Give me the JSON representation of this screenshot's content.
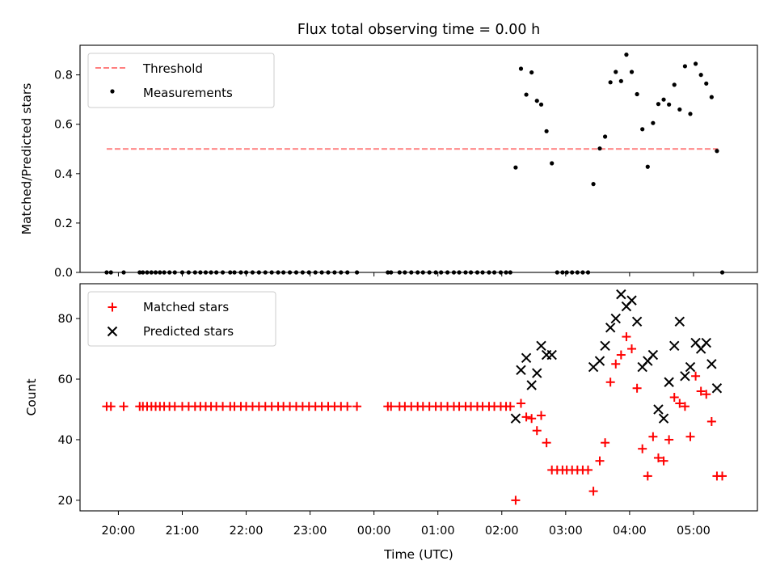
{
  "chart_data": [
    {
      "type": "scatter",
      "title": "Flux total observing time = 0.00 h",
      "xlabel": "",
      "ylabel": "Matched/Predicted stars",
      "ylim": [
        0.0,
        0.92
      ],
      "yticks": [
        0.0,
        0.2,
        0.4,
        0.6,
        0.8
      ],
      "ytick_labels": [
        "0.0",
        "0.2",
        "0.4",
        "0.6",
        "0.8"
      ],
      "legend_position": "top-left",
      "threshold": {
        "name": "Threshold",
        "value": 0.5,
        "x_start": "19:49",
        "x_end": "05:23",
        "color": "#ff7f7f"
      },
      "series": [
        {
          "name": "Measurements",
          "color": "#000000",
          "points": [
            [
              "19:49",
              0
            ],
            [
              "19:53",
              0
            ],
            [
              "20:05",
              0
            ],
            [
              "20:20",
              0
            ],
            [
              "20:23",
              0
            ],
            [
              "20:27",
              0
            ],
            [
              "20:31",
              0
            ],
            [
              "20:35",
              0
            ],
            [
              "20:39",
              0
            ],
            [
              "20:43",
              0
            ],
            [
              "20:48",
              0
            ],
            [
              "20:53",
              0
            ],
            [
              "21:00",
              0
            ],
            [
              "21:06",
              0
            ],
            [
              "21:12",
              0
            ],
            [
              "21:17",
              0
            ],
            [
              "21:22",
              0
            ],
            [
              "21:27",
              0
            ],
            [
              "21:32",
              0
            ],
            [
              "21:38",
              0
            ],
            [
              "21:45",
              0
            ],
            [
              "21:49",
              0
            ],
            [
              "21:55",
              0
            ],
            [
              "22:00",
              0
            ],
            [
              "22:06",
              0
            ],
            [
              "22:12",
              0
            ],
            [
              "22:18",
              0
            ],
            [
              "22:24",
              0
            ],
            [
              "22:30",
              0
            ],
            [
              "22:35",
              0
            ],
            [
              "22:41",
              0
            ],
            [
              "22:47",
              0
            ],
            [
              "22:53",
              0
            ],
            [
              "22:59",
              0
            ],
            [
              "23:05",
              0
            ],
            [
              "23:11",
              0
            ],
            [
              "23:17",
              0
            ],
            [
              "23:23",
              0
            ],
            [
              "23:29",
              0
            ],
            [
              "23:35",
              0
            ],
            [
              "23:44",
              0
            ],
            [
              "00:13",
              0
            ],
            [
              "00:16",
              0
            ],
            [
              "00:24",
              0
            ],
            [
              "00:29",
              0
            ],
            [
              "00:35",
              0
            ],
            [
              "00:41",
              0
            ],
            [
              "00:46",
              0
            ],
            [
              "00:52",
              0
            ],
            [
              "00:58",
              0
            ],
            [
              "01:03",
              0
            ],
            [
              "01:09",
              0
            ],
            [
              "01:15",
              0
            ],
            [
              "01:20",
              0
            ],
            [
              "01:26",
              0
            ],
            [
              "01:31",
              0
            ],
            [
              "01:37",
              0
            ],
            [
              "01:42",
              0
            ],
            [
              "01:48",
              0
            ],
            [
              "01:53",
              0
            ],
            [
              "01:59",
              0
            ],
            [
              "02:04",
              0
            ],
            [
              "02:08",
              0
            ],
            [
              "02:13",
              0.425
            ],
            [
              "02:18",
              0.825
            ],
            [
              "02:23",
              0.72
            ],
            [
              "02:28",
              0.81
            ],
            [
              "02:33",
              0.695
            ],
            [
              "02:37",
              0.68
            ],
            [
              "02:42",
              0.572
            ],
            [
              "02:47",
              0.442
            ],
            [
              "02:52",
              0
            ],
            [
              "02:57",
              0
            ],
            [
              "03:01",
              0
            ],
            [
              "03:06",
              0
            ],
            [
              "03:11",
              0
            ],
            [
              "03:16",
              0
            ],
            [
              "03:21",
              0
            ],
            [
              "03:26",
              0.358
            ],
            [
              "03:32",
              0.502
            ],
            [
              "03:37",
              0.55
            ],
            [
              "03:42",
              0.77
            ],
            [
              "03:47",
              0.812
            ],
            [
              "03:52",
              0.775
            ],
            [
              "03:57",
              0.882
            ],
            [
              "04:02",
              0.812
            ],
            [
              "04:07",
              0.722
            ],
            [
              "04:12",
              0.58
            ],
            [
              "04:17",
              0.428
            ],
            [
              "04:22",
              0.605
            ],
            [
              "04:27",
              0.682
            ],
            [
              "04:32",
              0.7
            ],
            [
              "04:37",
              0.68
            ],
            [
              "04:42",
              0.76
            ],
            [
              "04:47",
              0.66
            ],
            [
              "04:52",
              0.835
            ],
            [
              "04:57",
              0.642
            ],
            [
              "05:02",
              0.845
            ],
            [
              "05:07",
              0.8
            ],
            [
              "05:12",
              0.765
            ],
            [
              "05:17",
              0.71
            ],
            [
              "05:22",
              0.492
            ],
            [
              "05:27",
              0
            ]
          ]
        }
      ]
    },
    {
      "type": "scatter",
      "title": "",
      "xlabel": "Time (UTC)",
      "ylabel": "Count",
      "ylim": [
        16.5,
        91.5
      ],
      "yticks": [
        20,
        40,
        60,
        80
      ],
      "ytick_labels": [
        "20",
        "40",
        "60",
        "80"
      ],
      "x_range": [
        "19:24",
        "06:00"
      ],
      "xticks": [
        "20:00",
        "21:00",
        "22:00",
        "23:00",
        "00:00",
        "01:00",
        "02:00",
        "03:00",
        "04:00",
        "05:00"
      ],
      "xtick_labels": [
        "20:00",
        "21:00",
        "22:00",
        "23:00",
        "00:00",
        "01:00",
        "02:00",
        "03:00",
        "04:00",
        "05:00"
      ],
      "legend_position": "top-left",
      "series": [
        {
          "name": "Matched stars",
          "color": "#ff0000",
          "marker": "plus",
          "points": [
            [
              "19:49",
              51
            ],
            [
              "19:53",
              51
            ],
            [
              "20:05",
              51
            ],
            [
              "20:20",
              51
            ],
            [
              "20:23",
              51
            ],
            [
              "20:27",
              51
            ],
            [
              "20:31",
              51
            ],
            [
              "20:35",
              51
            ],
            [
              "20:39",
              51
            ],
            [
              "20:43",
              51
            ],
            [
              "20:48",
              51
            ],
            [
              "20:53",
              51
            ],
            [
              "21:00",
              51
            ],
            [
              "21:06",
              51
            ],
            [
              "21:12",
              51
            ],
            [
              "21:17",
              51
            ],
            [
              "21:22",
              51
            ],
            [
              "21:27",
              51
            ],
            [
              "21:32",
              51
            ],
            [
              "21:38",
              51
            ],
            [
              "21:45",
              51
            ],
            [
              "21:49",
              51
            ],
            [
              "21:55",
              51
            ],
            [
              "22:00",
              51
            ],
            [
              "22:06",
              51
            ],
            [
              "22:12",
              51
            ],
            [
              "22:18",
              51
            ],
            [
              "22:24",
              51
            ],
            [
              "22:30",
              51
            ],
            [
              "22:35",
              51
            ],
            [
              "22:41",
              51
            ],
            [
              "22:47",
              51
            ],
            [
              "22:53",
              51
            ],
            [
              "22:59",
              51
            ],
            [
              "23:05",
              51
            ],
            [
              "23:11",
              51
            ],
            [
              "23:17",
              51
            ],
            [
              "23:23",
              51
            ],
            [
              "23:29",
              51
            ],
            [
              "23:35",
              51
            ],
            [
              "23:44",
              51
            ],
            [
              "00:13",
              51
            ],
            [
              "00:16",
              51
            ],
            [
              "00:24",
              51
            ],
            [
              "00:29",
              51
            ],
            [
              "00:35",
              51
            ],
            [
              "00:41",
              51
            ],
            [
              "00:46",
              51
            ],
            [
              "00:52",
              51
            ],
            [
              "00:58",
              51
            ],
            [
              "01:03",
              51
            ],
            [
              "01:09",
              51
            ],
            [
              "01:15",
              51
            ],
            [
              "01:20",
              51
            ],
            [
              "01:26",
              51
            ],
            [
              "01:31",
              51
            ],
            [
              "01:37",
              51
            ],
            [
              "01:42",
              51
            ],
            [
              "01:48",
              51
            ],
            [
              "01:53",
              51
            ],
            [
              "01:59",
              51
            ],
            [
              "02:04",
              51
            ],
            [
              "02:08",
              51
            ],
            [
              "02:13",
              20
            ],
            [
              "02:18",
              52
            ],
            [
              "02:23",
              47.5
            ],
            [
              "02:28",
              47
            ],
            [
              "02:33",
              43
            ],
            [
              "02:37",
              48
            ],
            [
              "02:42",
              39
            ],
            [
              "02:47",
              30
            ],
            [
              "02:52",
              30
            ],
            [
              "02:57",
              30
            ],
            [
              "03:01",
              30
            ],
            [
              "03:06",
              30
            ],
            [
              "03:11",
              30
            ],
            [
              "03:16",
              30
            ],
            [
              "03:21",
              30
            ],
            [
              "03:26",
              23
            ],
            [
              "03:32",
              33
            ],
            [
              "03:37",
              39
            ],
            [
              "03:42",
              59
            ],
            [
              "03:47",
              65
            ],
            [
              "03:52",
              68
            ],
            [
              "03:57",
              74
            ],
            [
              "04:02",
              70
            ],
            [
              "04:07",
              57
            ],
            [
              "04:12",
              37
            ],
            [
              "04:17",
              28
            ],
            [
              "04:22",
              41
            ],
            [
              "04:27",
              34
            ],
            [
              "04:32",
              33
            ],
            [
              "04:37",
              40
            ],
            [
              "04:42",
              54
            ],
            [
              "04:47",
              52
            ],
            [
              "04:52",
              51
            ],
            [
              "04:57",
              41
            ],
            [
              "05:02",
              61
            ],
            [
              "05:07",
              56
            ],
            [
              "05:12",
              55
            ],
            [
              "05:17",
              46
            ],
            [
              "05:22",
              28
            ],
            [
              "05:27",
              28
            ]
          ]
        },
        {
          "name": "Predicted stars",
          "color": "#000000",
          "marker": "x",
          "points": [
            [
              "02:13",
              47
            ],
            [
              "02:18",
              63
            ],
            [
              "02:23",
              67
            ],
            [
              "02:28",
              58
            ],
            [
              "02:33",
              62
            ],
            [
              "02:37",
              71
            ],
            [
              "02:42",
              68
            ],
            [
              "02:47",
              68
            ],
            [
              "03:26",
              64
            ],
            [
              "03:32",
              66
            ],
            [
              "03:37",
              71
            ],
            [
              "03:42",
              77
            ],
            [
              "03:47",
              80
            ],
            [
              "03:52",
              88
            ],
            [
              "03:57",
              84
            ],
            [
              "04:02",
              86
            ],
            [
              "04:07",
              79
            ],
            [
              "04:12",
              64
            ],
            [
              "04:17",
              66
            ],
            [
              "04:22",
              68
            ],
            [
              "04:27",
              50
            ],
            [
              "04:32",
              47
            ],
            [
              "04:37",
              59
            ],
            [
              "04:42",
              71
            ],
            [
              "04:47",
              79
            ],
            [
              "04:52",
              61
            ],
            [
              "04:57",
              64
            ],
            [
              "05:02",
              72
            ],
            [
              "05:07",
              70
            ],
            [
              "05:12",
              72
            ],
            [
              "05:17",
              65
            ],
            [
              "05:22",
              57
            ]
          ]
        }
      ]
    }
  ]
}
